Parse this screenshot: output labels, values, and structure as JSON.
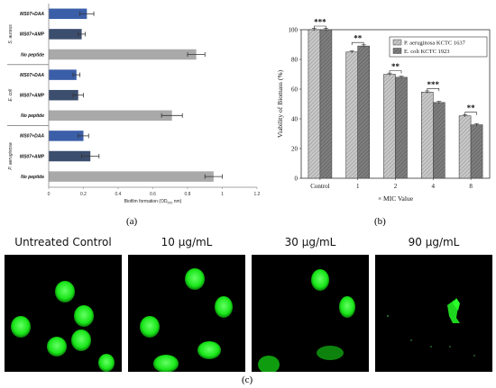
{
  "panel_labels": {
    "a": "(a)",
    "b": "(b)",
    "c": "(c)"
  },
  "panel_c": {
    "captions": [
      "Untreated Control",
      "10 µg/mL",
      "30 µg/mL",
      "90 µg/mL"
    ]
  },
  "chart_data": [
    {
      "id": "a",
      "type": "bar",
      "orientation": "horizontal",
      "xlabel": "Biofilm formation (OD",
      "xlabel_sub": "570",
      "xlabel_tail": " nm)",
      "xlim": [
        0,
        1.2
      ],
      "xticks": [
        "0",
        "0.2",
        "0.4",
        "0.6",
        "0.8",
        "1",
        "1.2"
      ],
      "groups": [
        {
          "name": "S. aureus",
          "bars": [
            {
              "label": "MS07+DAA",
              "value": 0.22,
              "err": 0.04,
              "color": "#3b5ea8"
            },
            {
              "label": "MS07+AMP",
              "value": 0.19,
              "err": 0.02,
              "color": "#3c4e6e"
            },
            {
              "label": "No peptide",
              "value": 0.85,
              "err": 0.05,
              "color": "#a9a9a9"
            }
          ]
        },
        {
          "name": "E. coli",
          "bars": [
            {
              "label": "MS07+DAA",
              "value": 0.16,
              "err": 0.02,
              "color": "#3b5ea8"
            },
            {
              "label": "MS07+AMP",
              "value": 0.17,
              "err": 0.03,
              "color": "#3c4e6e"
            },
            {
              "label": "No peptide",
              "value": 0.71,
              "err": 0.06,
              "color": "#a9a9a9"
            }
          ]
        },
        {
          "name": "P. aeruginosa",
          "bars": [
            {
              "label": "MS07+DAA",
              "value": 0.2,
              "err": 0.03,
              "color": "#3b5ea8"
            },
            {
              "label": "MS07+AMP",
              "value": 0.24,
              "err": 0.05,
              "color": "#3c4e6e"
            },
            {
              "label": "No peptide",
              "value": 0.95,
              "err": 0.05,
              "color": "#a9a9a9"
            }
          ]
        }
      ]
    },
    {
      "id": "b",
      "type": "bar",
      "categories": [
        "Control",
        "1",
        "2",
        "4",
        "8"
      ],
      "xlabel": "× MIC Value",
      "ylabel": "Viability of Biomass (%)",
      "ylim": [
        0,
        100
      ],
      "yticks": [
        "0",
        "20",
        "40",
        "60",
        "80",
        "100"
      ],
      "legend_position": "top-right",
      "series": [
        {
          "name": "P. aeruginosa KCTC 1637",
          "values": [
            100,
            85,
            70,
            58,
            42
          ],
          "err": [
            0.8,
            0.8,
            0.8,
            0.8,
            0.8
          ],
          "fill": "#c8c8c8"
        },
        {
          "name": "E. coli KCTC 1923",
          "values": [
            100,
            89,
            68,
            51,
            36
          ],
          "err": [
            0.8,
            0.8,
            0.8,
            0.8,
            0.8
          ],
          "fill": "#7e7e7e"
        }
      ],
      "significance": [
        "***",
        "**",
        "**",
        "***",
        "**"
      ]
    }
  ]
}
